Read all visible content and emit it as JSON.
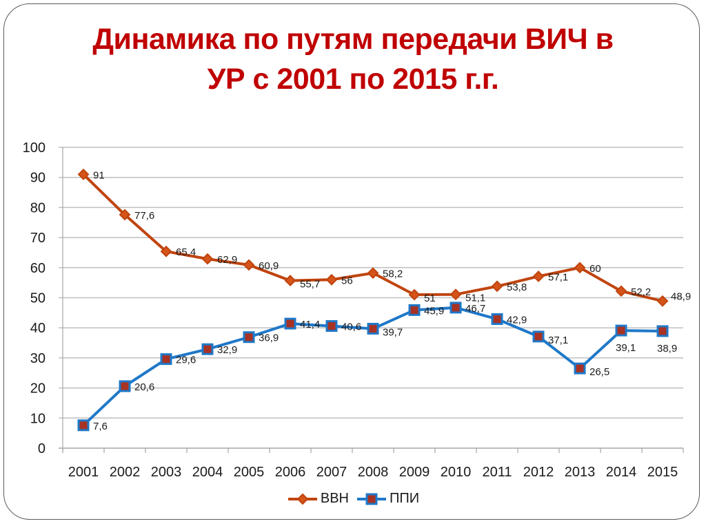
{
  "slide": {
    "title_line1": "Динамика по путям передачи ВИЧ в",
    "title_line2": "УР с 2001 по 2015 г.г."
  },
  "colors": {
    "title": "#c00000",
    "series_vvn": "#c0440e",
    "series_ppi": "#1f78c8",
    "ppi_marker_fill": "#a83224",
    "grid": "#bfbfbf"
  },
  "legend": {
    "items": [
      {
        "label": "ВВН",
        "marker": "diamond",
        "color": "#c0440e"
      },
      {
        "label": "ППИ",
        "marker": "square",
        "color": "#1f78c8"
      }
    ]
  },
  "chart_data": {
    "type": "line",
    "title": "Динамика по путям передачи ВИЧ в УР с 2001 по 2015 г.г.",
    "xlabel": "",
    "ylabel": "",
    "categories": [
      "2001",
      "2002",
      "2003",
      "2004",
      "2005",
      "2006",
      "2007",
      "2008",
      "2009",
      "2010",
      "2011",
      "2012",
      "2013",
      "2014",
      "2015"
    ],
    "series": [
      {
        "name": "ВВН",
        "values": [
          91,
          77.6,
          65.4,
          62.9,
          60.9,
          55.7,
          56,
          58.2,
          51,
          51.1,
          53.8,
          57.1,
          60,
          52.2,
          48.9
        ],
        "labels": [
          "91",
          "77,6",
          "65,4",
          "62,9",
          "60,9",
          "55,7",
          "56",
          "58,2",
          "51",
          "51,1",
          "53,8",
          "57,1",
          "60",
          "52,2",
          "48,9"
        ],
        "color": "#c0440e",
        "marker": "diamond"
      },
      {
        "name": "ППИ",
        "values": [
          7.6,
          20.6,
          29.6,
          32.9,
          36.9,
          41.4,
          40.6,
          39.7,
          45.9,
          46.7,
          42.9,
          37.1,
          26.5,
          39.1,
          38.9
        ],
        "labels": [
          "7,6",
          "20,6",
          "29,6",
          "32,9",
          "36,9",
          "41,4",
          "40,6",
          "39,7",
          "45,9",
          "46,7",
          "42,9",
          "37,1",
          "26,5",
          "39,1",
          "38,9"
        ],
        "color": "#1f78c8",
        "marker": "square"
      }
    ],
    "yticks": [
      "0",
      "10",
      "20",
      "30",
      "40",
      "50",
      "60",
      "70",
      "80",
      "90",
      "100"
    ],
    "ylim": [
      0,
      100
    ],
    "grid": true,
    "legend_position": "bottom"
  }
}
